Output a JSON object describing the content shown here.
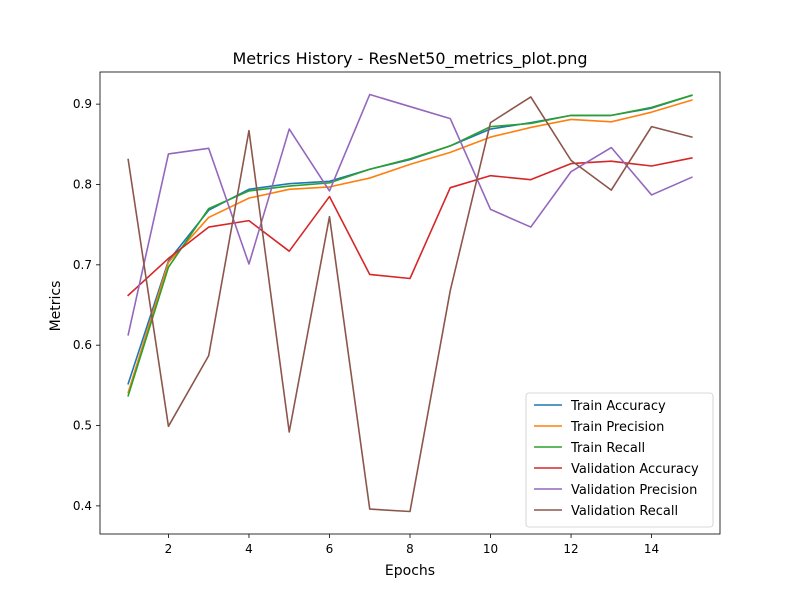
{
  "chart_data": {
    "type": "line",
    "title": "Metrics History - ResNet50_metrics_plot.png",
    "xlabel": "Epochs",
    "ylabel": "Metrics",
    "x": [
      1,
      2,
      3,
      4,
      5,
      6,
      7,
      8,
      9,
      10,
      11,
      12,
      13,
      14,
      15
    ],
    "xlim": [
      0.3,
      15.7
    ],
    "ylim": [
      0.365,
      0.94
    ],
    "xticks": [
      2,
      4,
      6,
      8,
      10,
      12,
      14
    ],
    "yticks": [
      0.4,
      0.5,
      0.6,
      0.7,
      0.8,
      0.9
    ],
    "grid": false,
    "legend_position": "lower-right",
    "series": [
      {
        "name": "Train Accuracy",
        "color": "#1f77b4",
        "values": [
          0.552,
          0.705,
          0.768,
          0.794,
          0.801,
          0.804,
          0.819,
          0.831,
          0.848,
          0.869,
          0.877,
          0.886,
          0.886,
          0.895,
          0.911
        ]
      },
      {
        "name": "Train Precision",
        "color": "#ff7f0e",
        "values": [
          0.541,
          0.703,
          0.759,
          0.783,
          0.794,
          0.797,
          0.808,
          0.825,
          0.84,
          0.859,
          0.871,
          0.881,
          0.878,
          0.89,
          0.905
        ]
      },
      {
        "name": "Train Recall",
        "color": "#2ca02c",
        "values": [
          0.537,
          0.697,
          0.77,
          0.792,
          0.798,
          0.802,
          0.819,
          0.832,
          0.848,
          0.872,
          0.876,
          0.886,
          0.886,
          0.896,
          0.911
        ]
      },
      {
        "name": "Validation Accuracy",
        "color": "#d62728",
        "values": [
          0.662,
          0.708,
          0.747,
          0.755,
          0.717,
          0.785,
          0.688,
          0.683,
          0.796,
          0.811,
          0.806,
          0.826,
          0.829,
          0.823,
          0.833
        ]
      },
      {
        "name": "Validation Precision",
        "color": "#9467bd",
        "values": [
          0.613,
          0.838,
          0.845,
          0.701,
          0.869,
          0.792,
          0.912,
          0.897,
          0.882,
          0.769,
          0.747,
          0.816,
          0.846,
          0.787,
          0.809
        ]
      },
      {
        "name": "Validation Recall",
        "color": "#8c564b",
        "values": [
          0.831,
          0.499,
          0.587,
          0.867,
          0.492,
          0.76,
          0.396,
          0.393,
          0.668,
          0.877,
          0.909,
          0.83,
          0.793,
          0.872,
          0.859
        ]
      }
    ]
  }
}
